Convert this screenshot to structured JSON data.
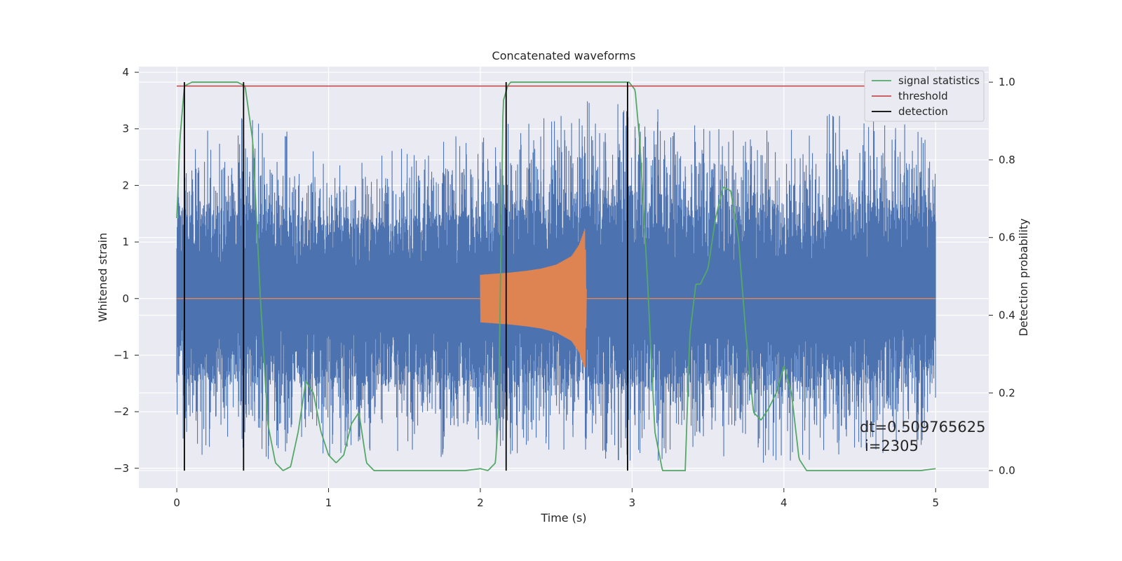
{
  "chart_data": {
    "type": "line",
    "title": "Concatenated waveforms",
    "xlabel": "Time (s)",
    "ylabel": "Whitened strain",
    "y2label": "Detection probability",
    "xlim": [
      -0.25,
      5.35
    ],
    "ylim": [
      -3.35,
      4.1
    ],
    "y2lim": [
      -0.045,
      1.04
    ],
    "x_ticks": [
      0,
      1,
      2,
      3,
      4,
      5
    ],
    "y_ticks": [
      -3,
      -2,
      -1,
      0,
      1,
      2,
      3,
      4
    ],
    "y2_ticks": [
      0.0,
      0.2,
      0.4,
      0.6,
      0.8,
      1.0
    ],
    "y2_tick_labels": [
      "0.0",
      "0.2",
      "0.4",
      "0.6",
      "0.8",
      "1.0"
    ],
    "grid": true,
    "legend_position": "top-right",
    "colors": {
      "background": "#eaeaf2",
      "noise": "#4c72b0",
      "injected": "#dd8452",
      "signal_statistics": "#55a868",
      "threshold": "#c44e52",
      "detection": "#000000"
    },
    "series": [
      {
        "name": "",
        "role": "whitened-noise-strain",
        "axis": "left",
        "x_range": [
          0,
          5
        ],
        "envelope": {
          "x": [
            0,
            0.5,
            1.0,
            1.5,
            2.0,
            2.5,
            3.0,
            3.5,
            4.0,
            4.5,
            5.0
          ],
          "max": [
            2.9,
            3.3,
            2.6,
            2.7,
            3.0,
            3.5,
            3.7,
            3.0,
            3.1,
            3.4,
            2.9
          ],
          "min": [
            -2.7,
            -2.9,
            -2.8,
            -2.8,
            -2.9,
            -2.7,
            -2.9,
            -2.8,
            -3.0,
            -2.8,
            -2.6
          ]
        }
      },
      {
        "name": "",
        "role": "injected-chirp",
        "axis": "left",
        "x_range": [
          2.0,
          2.7
        ],
        "envelope": {
          "x": [
            2.0,
            2.1,
            2.2,
            2.3,
            2.4,
            2.5,
            2.6,
            2.65,
            2.69,
            2.7
          ],
          "amplitude": [
            0.42,
            0.44,
            0.46,
            0.49,
            0.53,
            0.6,
            0.75,
            0.95,
            1.25,
            0.0
          ]
        }
      },
      {
        "name": "signal statistics",
        "axis": "right",
        "x": [
          0.0,
          0.02,
          0.05,
          0.1,
          0.2,
          0.3,
          0.4,
          0.45,
          0.5,
          0.55,
          0.6,
          0.65,
          0.7,
          0.75,
          0.8,
          0.85,
          0.9,
          0.95,
          1.0,
          1.05,
          1.1,
          1.15,
          1.2,
          1.25,
          1.3,
          1.4,
          1.6,
          1.8,
          1.9,
          2.0,
          2.05,
          2.1,
          2.12,
          2.15,
          2.18,
          2.2,
          2.3,
          2.5,
          2.8,
          2.98,
          3.02,
          3.05,
          3.1,
          3.15,
          3.2,
          3.3,
          3.35,
          3.38,
          3.42,
          3.45,
          3.5,
          3.55,
          3.6,
          3.65,
          3.7,
          3.75,
          3.8,
          3.85,
          3.9,
          3.95,
          4.0,
          4.05,
          4.1,
          4.15,
          4.2,
          4.4,
          4.6,
          4.8,
          4.9,
          5.0
        ],
        "y": [
          0.65,
          0.85,
          0.99,
          1.0,
          1.0,
          1.0,
          1.0,
          0.99,
          0.85,
          0.45,
          0.12,
          0.02,
          0.0,
          0.01,
          0.1,
          0.23,
          0.2,
          0.1,
          0.04,
          0.02,
          0.04,
          0.12,
          0.15,
          0.02,
          0.0,
          0.0,
          0.0,
          0.0,
          0.0,
          0.005,
          0.0,
          0.02,
          0.15,
          0.95,
          0.99,
          1.0,
          1.0,
          1.0,
          1.0,
          1.0,
          0.98,
          0.85,
          0.5,
          0.1,
          0.0,
          0.0,
          0.0,
          0.35,
          0.48,
          0.48,
          0.52,
          0.65,
          0.73,
          0.72,
          0.6,
          0.35,
          0.15,
          0.13,
          0.16,
          0.2,
          0.27,
          0.2,
          0.03,
          0.0,
          0.0,
          0.0,
          0.0,
          0.0,
          0.0,
          0.005
        ]
      },
      {
        "name": "threshold",
        "axis": "right",
        "x": [
          0,
          5
        ],
        "y": [
          0.99,
          0.99
        ]
      },
      {
        "name": "detection",
        "axis": "right",
        "type": "vlines",
        "x": [
          0.05,
          0.44,
          2.17,
          2.97
        ],
        "ymin": 0.0,
        "ymax": 1.0
      }
    ],
    "annotations": [
      "dt=0.509765625",
      "i=2305"
    ]
  }
}
